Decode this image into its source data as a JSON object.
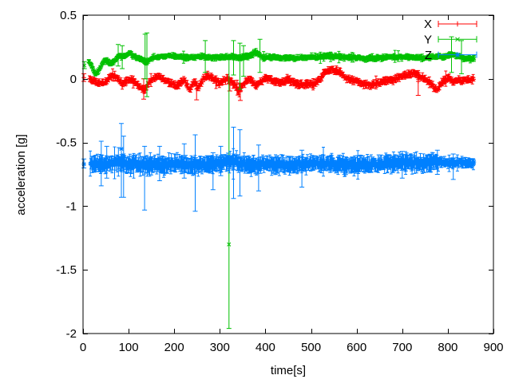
{
  "figure": {
    "background": "#ffffff",
    "axis_color": "#000000",
    "text_color": "#000000"
  },
  "chart_data": {
    "type": "scatter-errorbar",
    "title": "",
    "xlabel": "time[s]",
    "ylabel": "acceleration [g]",
    "xlim": [
      0,
      900
    ],
    "ylim": [
      -2,
      0.5
    ],
    "xtick_values": [
      0,
      100,
      200,
      300,
      400,
      500,
      600,
      700,
      800,
      900
    ],
    "xtick_labels": [
      "0",
      "100",
      "200",
      "300",
      "400",
      "500",
      "600",
      "700",
      "800",
      "900"
    ],
    "ytick_values": [
      0.5,
      0,
      -0.5,
      -1,
      -1.5,
      -2
    ],
    "ytick_labels": [
      "0.5",
      "0",
      "-0.5",
      "-1",
      "-1.5",
      "-2"
    ],
    "grid": false,
    "legend": {
      "position": "top-right-inside",
      "entries": [
        "X",
        "Y",
        "Z"
      ]
    },
    "series": [
      {
        "name": "X",
        "color": "#ff0000",
        "marker": "plus",
        "style": "points-with-yerrorbars",
        "seed": 11,
        "t_start": 14,
        "t_end": 858,
        "sample_dt": 1.5,
        "noise": 0.015,
        "err_min": 0.012,
        "err_max": 0.03,
        "stray_prob": 0.025,
        "stray_scale": 2.0,
        "keypoints": [
          [
            0,
            0.01
          ],
          [
            14,
            0
          ],
          [
            25,
            -0.02
          ],
          [
            38,
            -0.035
          ],
          [
            48,
            -0.03
          ],
          [
            56,
            0
          ],
          [
            63,
            0.03
          ],
          [
            72,
            0.02
          ],
          [
            80,
            -0.01
          ],
          [
            86,
            -0.045
          ],
          [
            95,
            -0.02
          ],
          [
            103,
            0
          ],
          [
            112,
            -0.02
          ],
          [
            120,
            -0.05
          ],
          [
            128,
            -0.07
          ],
          [
            134,
            -0.09
          ],
          [
            141,
            -0.05
          ],
          [
            148,
            -0.01
          ],
          [
            157,
            0.01
          ],
          [
            166,
            0.02
          ],
          [
            176,
            0
          ],
          [
            186,
            -0.02
          ],
          [
            196,
            -0.04
          ],
          [
            205,
            -0.055
          ],
          [
            213,
            -0.03
          ],
          [
            222,
            -0.01
          ],
          [
            228,
            -0.04
          ],
          [
            234,
            -0.085
          ],
          [
            240,
            -0.04
          ],
          [
            246,
            -0.02
          ],
          [
            252,
            -0.07
          ],
          [
            258,
            -0.035
          ],
          [
            264,
            0
          ],
          [
            272,
            0.02
          ],
          [
            282,
            0.01
          ],
          [
            292,
            -0.02
          ],
          [
            300,
            -0.035
          ],
          [
            308,
            -0.01
          ],
          [
            316,
            0
          ],
          [
            324,
            -0.02
          ],
          [
            333,
            -0.05
          ],
          [
            342,
            -0.095
          ],
          [
            352,
            -0.05
          ],
          [
            362,
            -0.005
          ],
          [
            372,
            -0.02
          ],
          [
            380,
            -0.055
          ],
          [
            390,
            -0.02
          ],
          [
            400,
            0.005
          ],
          [
            412,
            -0.01
          ],
          [
            424,
            -0.025
          ],
          [
            436,
            -0.03
          ],
          [
            448,
            -0.005
          ],
          [
            458,
            -0.02
          ],
          [
            470,
            -0.04
          ],
          [
            482,
            -0.045
          ],
          [
            494,
            -0.035
          ],
          [
            506,
            -0.045
          ],
          [
            518,
            -0.01
          ],
          [
            530,
            0.05
          ],
          [
            542,
            0.07
          ],
          [
            554,
            0.065
          ],
          [
            566,
            0.045
          ],
          [
            576,
            0.005
          ],
          [
            588,
            -0.01
          ],
          [
            600,
            -0.015
          ],
          [
            614,
            -0.04
          ],
          [
            628,
            -0.05
          ],
          [
            642,
            -0.04
          ],
          [
            655,
            -0.02
          ],
          [
            668,
            -0.01
          ],
          [
            680,
            -0.005
          ],
          [
            694,
            0.01
          ],
          [
            706,
            0.025
          ],
          [
            718,
            0.035
          ],
          [
            730,
            0.04
          ],
          [
            742,
            0.015
          ],
          [
            755,
            -0.015
          ],
          [
            766,
            -0.05
          ],
          [
            775,
            -0.09
          ],
          [
            784,
            -0.045
          ],
          [
            794,
            -0.005
          ],
          [
            804,
            0.005
          ],
          [
            812,
            -0.03
          ],
          [
            820,
            -0.005
          ],
          [
            830,
            -0.02
          ],
          [
            840,
            -0.01
          ],
          [
            850,
            -0.005
          ],
          [
            858,
            0
          ]
        ],
        "outliers_tvlh": [
          [
            2,
            0.01,
            -0.02,
            0.04
          ],
          [
            133,
            -0.055,
            -0.16,
            0
          ],
          [
            249,
            -0.08,
            -0.165,
            -0.02
          ],
          [
            322,
            -0.03,
            -0.095,
            0.01
          ],
          [
            345,
            -0.1,
            -0.17,
            -0.04
          ],
          [
            735,
            -0.02,
            -0.13,
            0.03
          ]
        ]
      },
      {
        "name": "Y",
        "color": "#00c000",
        "marker": "cross",
        "style": "points-with-yerrorbars",
        "seed": 22,
        "t_start": 12,
        "t_end": 858,
        "sample_dt": 1.5,
        "noise": 0.012,
        "err_min": 0.01,
        "err_max": 0.024,
        "stray_prob": 0.02,
        "stray_scale": 2.0,
        "keypoints": [
          [
            0,
            0.105
          ],
          [
            12,
            0.14
          ],
          [
            20,
            0.1
          ],
          [
            27,
            0.04
          ],
          [
            34,
            0.06
          ],
          [
            42,
            0.12
          ],
          [
            50,
            0.15
          ],
          [
            58,
            0.12
          ],
          [
            64,
            0.12
          ],
          [
            72,
            0.16
          ],
          [
            80,
            0.19
          ],
          [
            88,
            0.17
          ],
          [
            96,
            0.18
          ],
          [
            102,
            0.21
          ],
          [
            110,
            0.18
          ],
          [
            118,
            0.165
          ],
          [
            130,
            0.15
          ],
          [
            140,
            0.13
          ],
          [
            150,
            0.16
          ],
          [
            162,
            0.17
          ],
          [
            175,
            0.175
          ],
          [
            190,
            0.18
          ],
          [
            205,
            0.175
          ],
          [
            220,
            0.17
          ],
          [
            235,
            0.165
          ],
          [
            250,
            0.17
          ],
          [
            265,
            0.175
          ],
          [
            280,
            0.17
          ],
          [
            295,
            0.165
          ],
          [
            310,
            0.17
          ],
          [
            320,
            0.17
          ],
          [
            330,
            0.175
          ],
          [
            342,
            0.17
          ],
          [
            355,
            0.17
          ],
          [
            368,
            0.18
          ],
          [
            376,
            0.21
          ],
          [
            384,
            0.2
          ],
          [
            392,
            0.175
          ],
          [
            405,
            0.17
          ],
          [
            420,
            0.17
          ],
          [
            435,
            0.165
          ],
          [
            450,
            0.16
          ],
          [
            465,
            0.165
          ],
          [
            480,
            0.165
          ],
          [
            495,
            0.17
          ],
          [
            510,
            0.17
          ],
          [
            525,
            0.175
          ],
          [
            540,
            0.18
          ],
          [
            555,
            0.175
          ],
          [
            570,
            0.17
          ],
          [
            585,
            0.165
          ],
          [
            600,
            0.165
          ],
          [
            615,
            0.16
          ],
          [
            630,
            0.16
          ],
          [
            645,
            0.165
          ],
          [
            660,
            0.165
          ],
          [
            675,
            0.17
          ],
          [
            690,
            0.17
          ],
          [
            705,
            0.17
          ],
          [
            720,
            0.17
          ],
          [
            735,
            0.165
          ],
          [
            750,
            0.165
          ],
          [
            765,
            0.17
          ],
          [
            778,
            0.175
          ],
          [
            790,
            0.17
          ],
          [
            802,
            0.185
          ],
          [
            812,
            0.19
          ],
          [
            822,
            0.175
          ],
          [
            832,
            0.165
          ],
          [
            845,
            0.16
          ],
          [
            858,
            0.16
          ]
        ],
        "outliers_tvlh": [
          [
            3,
            0.105,
            0.08,
            0.135
          ],
          [
            77,
            0.18,
            0.1,
            0.27
          ],
          [
            86,
            0.18,
            0.08,
            0.26
          ],
          [
            136,
            0.15,
            0,
            0.35
          ],
          [
            140,
            0.12,
            -0.14,
            0.36
          ],
          [
            268,
            0.17,
            0.05,
            0.3
          ],
          [
            320,
            -1.3,
            -1.96,
            0.15
          ],
          [
            330,
            0.17,
            0.03,
            0.3
          ],
          [
            344,
            0.15,
            -0.08,
            0.28
          ],
          [
            352,
            0.16,
            0.02,
            0.26
          ],
          [
            388,
            0.19,
            0.05,
            0.31
          ],
          [
            808,
            0.18,
            0.05,
            0.33
          ],
          [
            830,
            0.17,
            0.04,
            0.3
          ]
        ]
      },
      {
        "name": "Z",
        "color": "#0080ff",
        "marker": "star",
        "style": "points-with-yerrorbars",
        "seed": 33,
        "t_start": 16,
        "t_end": 858,
        "sample_dt": 1.4,
        "noise": 0.03,
        "err_min": 0.03,
        "err_max": 0.07,
        "stray_prob": 0.03,
        "stray_scale": 1.8,
        "taper": {
          "t": 780,
          "noise_scale": 0.55,
          "err_scale": 0.6
        },
        "keypoints": [
          [
            0,
            -0.67
          ],
          [
            18,
            -0.675
          ],
          [
            30,
            -0.67
          ],
          [
            45,
            -0.675
          ],
          [
            60,
            -0.67
          ],
          [
            75,
            -0.655
          ],
          [
            90,
            -0.665
          ],
          [
            105,
            -0.675
          ],
          [
            120,
            -0.67
          ],
          [
            135,
            -0.68
          ],
          [
            150,
            -0.675
          ],
          [
            165,
            -0.685
          ],
          [
            180,
            -0.675
          ],
          [
            195,
            -0.67
          ],
          [
            210,
            -0.665
          ],
          [
            225,
            -0.67
          ],
          [
            240,
            -0.68
          ],
          [
            255,
            -0.675
          ],
          [
            270,
            -0.67
          ],
          [
            285,
            -0.665
          ],
          [
            300,
            -0.66
          ],
          [
            315,
            -0.655
          ],
          [
            330,
            -0.65
          ],
          [
            345,
            -0.66
          ],
          [
            360,
            -0.675
          ],
          [
            375,
            -0.68
          ],
          [
            390,
            -0.675
          ],
          [
            405,
            -0.67
          ],
          [
            420,
            -0.675
          ],
          [
            435,
            -0.67
          ],
          [
            450,
            -0.675
          ],
          [
            465,
            -0.675
          ],
          [
            480,
            -0.67
          ],
          [
            495,
            -0.665
          ],
          [
            510,
            -0.665
          ],
          [
            525,
            -0.67
          ],
          [
            540,
            -0.665
          ],
          [
            555,
            -0.67
          ],
          [
            570,
            -0.675
          ],
          [
            585,
            -0.68
          ],
          [
            600,
            -0.675
          ],
          [
            615,
            -0.67
          ],
          [
            630,
            -0.665
          ],
          [
            645,
            -0.67
          ],
          [
            660,
            -0.665
          ],
          [
            675,
            -0.665
          ],
          [
            690,
            -0.66
          ],
          [
            705,
            -0.66
          ],
          [
            720,
            -0.655
          ],
          [
            735,
            -0.66
          ],
          [
            750,
            -0.66
          ],
          [
            765,
            -0.655
          ],
          [
            780,
            -0.655
          ],
          [
            795,
            -0.655
          ],
          [
            810,
            -0.66
          ],
          [
            825,
            -0.66
          ],
          [
            840,
            -0.66
          ],
          [
            858,
            -0.66
          ]
        ],
        "outliers_tvlh": [
          [
            2,
            -0.67,
            -0.7,
            -0.63
          ],
          [
            40,
            -0.64,
            -0.84,
            -0.49
          ],
          [
            52,
            -0.62,
            -0.78,
            -0.53
          ],
          [
            84,
            -0.55,
            -0.93,
            -0.35
          ],
          [
            89,
            -0.6,
            -0.93,
            -0.45
          ],
          [
            135,
            -0.68,
            -1.03,
            -0.53
          ],
          [
            168,
            -0.63,
            -0.8,
            -0.53
          ],
          [
            222,
            -0.62,
            -0.78,
            -0.51
          ],
          [
            246,
            -0.66,
            -1.04,
            -0.44
          ],
          [
            285,
            -0.7,
            -0.87,
            -0.58
          ],
          [
            302,
            -0.62,
            -0.76,
            -0.53
          ],
          [
            330,
            -0.6,
            -0.94,
            -0.38
          ],
          [
            344,
            -0.62,
            -0.92,
            -0.4
          ],
          [
            385,
            -0.67,
            -0.88,
            -0.52
          ],
          [
            480,
            -0.68,
            -0.85,
            -0.56
          ],
          [
            700,
            -0.64,
            -0.78,
            -0.57
          ],
          [
            777,
            -0.63,
            -0.75,
            -0.56
          ],
          [
            812,
            -0.67,
            -0.79,
            -0.59
          ]
        ]
      }
    ]
  }
}
